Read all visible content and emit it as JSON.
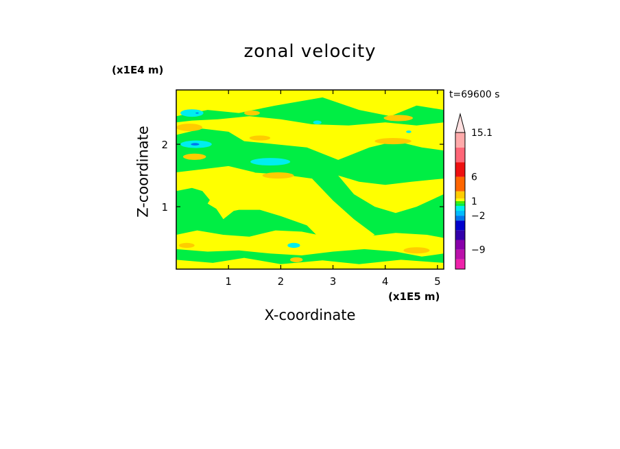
{
  "chart_data": {
    "type": "heatmap",
    "title": "zonal velocity",
    "xlabel": "X-coordinate",
    "ylabel": "Z-coordinate",
    "x_unit": "(x1E5 m)",
    "y_unit": "(x1E4 m)",
    "time_label": "t=69600 s",
    "x_ticks": [
      "1",
      "2",
      "3",
      "4",
      "5"
    ],
    "x_tick_values": [
      1,
      2,
      3,
      4,
      5
    ],
    "y_ticks": [
      "1",
      "2"
    ],
    "y_tick_values": [
      1,
      2
    ],
    "xlim": [
      0,
      5.12
    ],
    "ylim": [
      0,
      2.87
    ],
    "colorbar": {
      "labels": [
        "15.1",
        "6",
        "1",
        "−2",
        "−9"
      ],
      "label_values": [
        15.1,
        6,
        1,
        -2,
        -9
      ],
      "bands": [
        {
          "lo": -13,
          "hi": -11,
          "color": "#ee22aa"
        },
        {
          "lo": -11,
          "hi": -9,
          "color": "#bb11aa"
        },
        {
          "lo": -9,
          "hi": -7,
          "color": "#8800aa"
        },
        {
          "lo": -7,
          "hi": -5,
          "color": "#3300aa"
        },
        {
          "lo": -5,
          "hi": -3,
          "color": "#0000cc"
        },
        {
          "lo": -3,
          "hi": -2,
          "color": "#0077ee"
        },
        {
          "lo": -2,
          "hi": -1,
          "color": "#00bbff"
        },
        {
          "lo": -1,
          "hi": 0,
          "color": "#00eeee"
        },
        {
          "lo": 0,
          "hi": 0.5,
          "color": "#00ee44"
        },
        {
          "lo": 0.5,
          "hi": 1,
          "color": "#44ee00"
        },
        {
          "lo": 1,
          "hi": 1.5,
          "color": "#ffff00"
        },
        {
          "lo": 1.5,
          "hi": 3,
          "color": "#ffcc00"
        },
        {
          "lo": 3,
          "hi": 6,
          "color": "#ff6600"
        },
        {
          "lo": 6,
          "hi": 9,
          "color": "#ee1111"
        },
        {
          "lo": 9,
          "hi": 12,
          "color": "#ff6677"
        },
        {
          "lo": 12,
          "hi": 15.1,
          "color": "#ffaaaa"
        }
      ],
      "extend_top_color": "#ffe0e0"
    },
    "field_levels": {
      "green": 0.3,
      "yellow": 1.2,
      "orange": 2.0,
      "cyan": -0.8,
      "blue": -3.0
    },
    "regions": [
      {
        "value": 0.3,
        "shape": "rect",
        "x": [
          0,
          5.12
        ],
        "z": [
          0,
          2.87
        ]
      },
      {
        "value": 1.2,
        "shape": "poly",
        "pts": [
          [
            0,
            2.45
          ],
          [
            0.6,
            2.55
          ],
          [
            1.2,
            2.5
          ],
          [
            1.9,
            2.62
          ],
          [
            2.8,
            2.75
          ],
          [
            3.5,
            2.55
          ],
          [
            4.1,
            2.45
          ],
          [
            4.6,
            2.62
          ],
          [
            5.12,
            2.55
          ],
          [
            5.12,
            2.87
          ],
          [
            0,
            2.87
          ]
        ]
      },
      {
        "value": 1.2,
        "shape": "poly",
        "pts": [
          [
            0,
            2.15
          ],
          [
            0.5,
            2.25
          ],
          [
            1.0,
            2.2
          ],
          [
            1.3,
            2.05
          ],
          [
            1.9,
            2.0
          ],
          [
            2.5,
            1.95
          ],
          [
            3.1,
            1.75
          ],
          [
            3.7,
            1.95
          ],
          [
            4.2,
            2.05
          ],
          [
            4.7,
            1.95
          ],
          [
            5.12,
            1.9
          ],
          [
            5.12,
            2.35
          ],
          [
            4.6,
            2.3
          ],
          [
            4.0,
            2.35
          ],
          [
            3.3,
            2.3
          ],
          [
            2.6,
            2.32
          ],
          [
            2.0,
            2.4
          ],
          [
            1.4,
            2.45
          ],
          [
            0.8,
            2.4
          ],
          [
            0.3,
            2.38
          ],
          [
            0,
            2.35
          ]
        ]
      },
      {
        "value": 1.2,
        "shape": "poly",
        "pts": [
          [
            0,
            1.55
          ],
          [
            0.5,
            1.6
          ],
          [
            1.0,
            1.65
          ],
          [
            1.5,
            1.55
          ],
          [
            1.7,
            1.2
          ],
          [
            1.2,
            1.0
          ],
          [
            0.9,
            0.8
          ],
          [
            0.7,
            1.05
          ],
          [
            0.5,
            1.25
          ],
          [
            0.3,
            1.3
          ],
          [
            0,
            1.25
          ]
        ]
      },
      {
        "value": 1.2,
        "shape": "poly",
        "pts": [
          [
            0.6,
            1.05
          ],
          [
            0.9,
            1.45
          ],
          [
            1.4,
            1.55
          ],
          [
            2.0,
            1.52
          ],
          [
            2.6,
            1.45
          ],
          [
            3.0,
            1.1
          ],
          [
            3.4,
            0.8
          ],
          [
            3.8,
            0.55
          ],
          [
            3.3,
            0.35
          ],
          [
            2.8,
            0.45
          ],
          [
            2.5,
            0.7
          ],
          [
            2.0,
            0.85
          ],
          [
            1.6,
            0.95
          ],
          [
            1.2,
            0.95
          ],
          [
            0.9,
            0.9
          ]
        ]
      },
      {
        "value": 1.2,
        "shape": "poly",
        "pts": [
          [
            3.1,
            1.5
          ],
          [
            3.5,
            1.4
          ],
          [
            4.0,
            1.35
          ],
          [
            4.5,
            1.4
          ],
          [
            5.12,
            1.45
          ],
          [
            5.12,
            1.2
          ],
          [
            4.6,
            1.0
          ],
          [
            4.2,
            0.9
          ],
          [
            3.8,
            1.0
          ],
          [
            3.4,
            1.2
          ]
        ]
      },
      {
        "value": 1.2,
        "shape": "poly",
        "pts": [
          [
            0,
            0.55
          ],
          [
            0.4,
            0.62
          ],
          [
            0.9,
            0.55
          ],
          [
            1.4,
            0.52
          ],
          [
            1.9,
            0.62
          ],
          [
            2.4,
            0.6
          ],
          [
            3.0,
            0.5
          ],
          [
            3.6,
            0.52
          ],
          [
            4.2,
            0.58
          ],
          [
            4.8,
            0.55
          ],
          [
            5.12,
            0.5
          ],
          [
            5.12,
            0.25
          ],
          [
            4.7,
            0.2
          ],
          [
            4.2,
            0.28
          ],
          [
            3.6,
            0.32
          ],
          [
            3.0,
            0.28
          ],
          [
            2.4,
            0.22
          ],
          [
            1.8,
            0.25
          ],
          [
            1.2,
            0.3
          ],
          [
            0.6,
            0.28
          ],
          [
            0,
            0.32
          ]
        ]
      },
      {
        "value": 1.2,
        "shape": "poly",
        "pts": [
          [
            0,
            0.0
          ],
          [
            0,
            0.15
          ],
          [
            0.7,
            0.1
          ],
          [
            1.3,
            0.18
          ],
          [
            2.0,
            0.08
          ],
          [
            2.8,
            0.14
          ],
          [
            3.5,
            0.08
          ],
          [
            4.3,
            0.15
          ],
          [
            5.12,
            0.1
          ],
          [
            5.12,
            0.0
          ]
        ]
      },
      {
        "value": 2.0,
        "shape": "ellipse",
        "cx": 0.25,
        "cz": 2.27,
        "rx": 0.25,
        "rz": 0.06
      },
      {
        "value": 2.0,
        "shape": "ellipse",
        "cx": 0.35,
        "cz": 1.8,
        "rx": 0.22,
        "rz": 0.05
      },
      {
        "value": 2.0,
        "shape": "ellipse",
        "cx": 1.45,
        "cz": 2.5,
        "rx": 0.15,
        "rz": 0.04
      },
      {
        "value": 2.0,
        "shape": "ellipse",
        "cx": 1.6,
        "cz": 2.1,
        "rx": 0.2,
        "rz": 0.04
      },
      {
        "value": 2.0,
        "shape": "ellipse",
        "cx": 1.95,
        "cz": 1.5,
        "rx": 0.3,
        "rz": 0.05
      },
      {
        "value": 2.0,
        "shape": "ellipse",
        "cx": 4.25,
        "cz": 2.42,
        "rx": 0.28,
        "rz": 0.05
      },
      {
        "value": 2.0,
        "shape": "ellipse",
        "cx": 4.15,
        "cz": 2.05,
        "rx": 0.35,
        "rz": 0.05
      },
      {
        "value": 2.0,
        "shape": "ellipse",
        "cx": 4.6,
        "cz": 0.3,
        "rx": 0.25,
        "rz": 0.05
      },
      {
        "value": 2.0,
        "shape": "ellipse",
        "cx": 0.2,
        "cz": 0.38,
        "rx": 0.15,
        "rz": 0.04
      },
      {
        "value": 2.0,
        "shape": "ellipse",
        "cx": 2.3,
        "cz": 0.15,
        "rx": 0.12,
        "rz": 0.04
      },
      {
        "value": -0.8,
        "shape": "ellipse",
        "cx": 0.3,
        "cz": 2.5,
        "rx": 0.22,
        "rz": 0.06
      },
      {
        "value": -0.8,
        "shape": "ellipse",
        "cx": 0.38,
        "cz": 2.0,
        "rx": 0.3,
        "rz": 0.06
      },
      {
        "value": -0.8,
        "shape": "ellipse",
        "cx": 1.8,
        "cz": 1.72,
        "rx": 0.38,
        "rz": 0.06
      },
      {
        "value": -0.8,
        "shape": "ellipse",
        "cx": 2.7,
        "cz": 2.35,
        "rx": 0.08,
        "rz": 0.03
      },
      {
        "value": -0.8,
        "shape": "ellipse",
        "cx": 2.25,
        "cz": 0.38,
        "rx": 0.12,
        "rz": 0.04
      },
      {
        "value": -0.8,
        "shape": "ellipse",
        "cx": 4.45,
        "cz": 2.2,
        "rx": 0.05,
        "rz": 0.02
      },
      {
        "value": -3.0,
        "shape": "ellipse",
        "cx": 0.36,
        "cz": 2.0,
        "rx": 0.08,
        "rz": 0.02
      },
      {
        "value": -3.0,
        "shape": "ellipse",
        "cx": 0.4,
        "cz": 2.5,
        "rx": 0.03,
        "rz": 0.01
      }
    ]
  }
}
